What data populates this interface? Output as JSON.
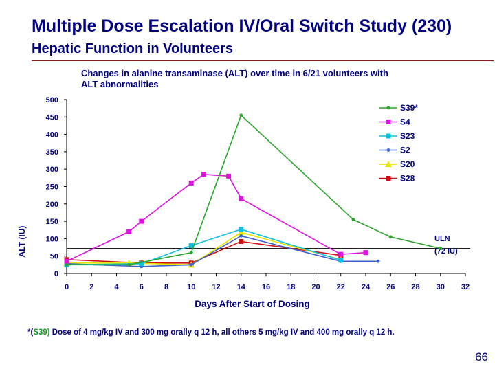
{
  "slide": {
    "title": "Multiple Dose Escalation IV/Oral Switch Study (230)",
    "subtitle": "Hepatic Function in Volunteers",
    "footnote_prefix": "*(",
    "footnote_highlight": "S39)",
    "footnote_rest": " Dose of 4 mg/kg IV and 300 mg orally q 12 h, all others 5 mg/kg IV and 400 mg orally q 12 h.",
    "page_number": "66"
  },
  "chart_data": {
    "type": "line",
    "title": "Changes in alanine transaminase (ALT) over time in 6/21 volunteers with ALT abnormalities",
    "xlabel": "Days After Start of Dosing",
    "ylabel": "ALT (IU)",
    "xlim": [
      0,
      32
    ],
    "ylim": [
      0,
      500
    ],
    "xticks": [
      0,
      2,
      4,
      6,
      8,
      10,
      12,
      14,
      16,
      18,
      20,
      22,
      24,
      26,
      28,
      30,
      32
    ],
    "yticks": [
      0,
      50,
      100,
      150,
      200,
      250,
      300,
      350,
      400,
      450,
      500
    ],
    "xtick_labels": [
      "0",
      "2",
      "4",
      "6",
      "8",
      "10",
      "12",
      "14",
      "16",
      "18",
      "20",
      "22",
      "24",
      "26",
      "28",
      "30",
      "32"
    ],
    "reference_line": {
      "y": 72,
      "label": "ULN\n(72 IU)"
    },
    "legend_position": "top-right",
    "series": [
      {
        "name": "S39*",
        "color": "#2aa52a",
        "marker": "dot",
        "x": [
          0,
          5,
          10,
          14,
          23,
          26,
          30
        ],
        "y": [
          25,
          25,
          60,
          455,
          155,
          105,
          72
        ]
      },
      {
        "name": "S4",
        "color": "#e010e0",
        "marker": "square",
        "x": [
          0,
          5,
          6,
          10,
          11,
          13,
          14,
          22,
          24
        ],
        "y": [
          35,
          120,
          150,
          260,
          285,
          280,
          215,
          55,
          60
        ]
      },
      {
        "name": "S23",
        "color": "#10c0e0",
        "marker": "square",
        "x": [
          0,
          6,
          10,
          14,
          22
        ],
        "y": [
          25,
          28,
          80,
          127,
          38
        ]
      },
      {
        "name": "S2",
        "color": "#3a5fd0",
        "marker": "dot",
        "x": [
          0,
          6,
          10,
          14,
          22,
          25
        ],
        "y": [
          28,
          20,
          25,
          108,
          35,
          35
        ]
      },
      {
        "name": "S20",
        "color": "#e6e600",
        "marker": "triangle",
        "x": [
          0,
          5,
          10,
          14,
          22
        ],
        "y": [
          30,
          30,
          25,
          118,
          40
        ]
      },
      {
        "name": "S28",
        "color": "#d01010",
        "marker": "square",
        "x": [
          0,
          6,
          10,
          14,
          22
        ],
        "y": [
          40,
          30,
          30,
          92,
          52
        ]
      }
    ]
  }
}
